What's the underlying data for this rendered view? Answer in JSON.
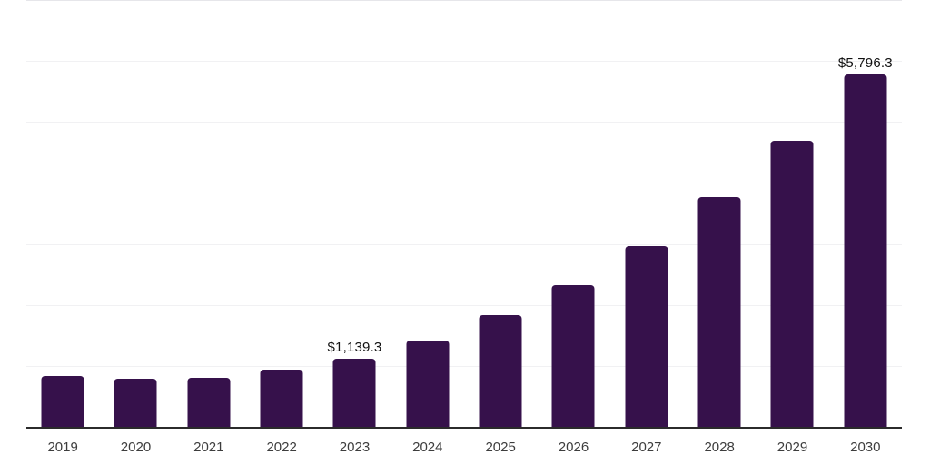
{
  "chart_data": {
    "type": "bar",
    "title": "",
    "xlabel": "",
    "ylabel": "",
    "categories": [
      "2019",
      "2020",
      "2021",
      "2022",
      "2023",
      "2024",
      "2025",
      "2026",
      "2027",
      "2028",
      "2029",
      "2030"
    ],
    "values": [
      845,
      800,
      820,
      960,
      1139.3,
      1435,
      1840,
      2345,
      2980,
      3785,
      4710,
      5796.3
    ],
    "data_labels": [
      "",
      "",
      "",
      "",
      "$1,139.3",
      "",
      "",
      "",
      "",
      "",
      "",
      "$5,796.3"
    ],
    "ylim": [
      0,
      7000
    ],
    "gridline_interval": 1000,
    "grid": "horizontal",
    "legend": "none",
    "colors": {
      "bar": "#36114B",
      "axis": "#2B2B2B",
      "grid": "#F1F1F3",
      "grid_top": "#E6E6EA",
      "tick_label": "#3D3D3D",
      "data_label": "#111111",
      "background": "#FFFFFF"
    }
  }
}
